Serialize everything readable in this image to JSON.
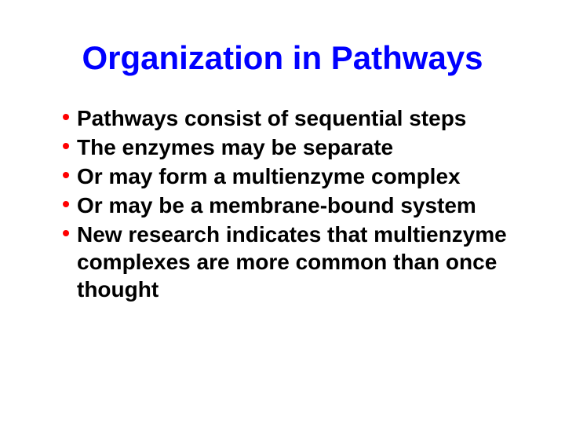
{
  "title": {
    "text": "Organization in Pathways",
    "color": "#0000ff",
    "fontsize": 42
  },
  "bullets": {
    "marker_color": "#ff0000",
    "text_color": "#000000",
    "fontsize": 28,
    "items": [
      "Pathways consist of sequential steps",
      "The enzymes may be separate",
      "Or may form a multienzyme complex",
      "Or may be a membrane-bound system",
      "New research indicates that multienzyme complexes are more common than once thought"
    ]
  },
  "background_color": "#ffffff"
}
